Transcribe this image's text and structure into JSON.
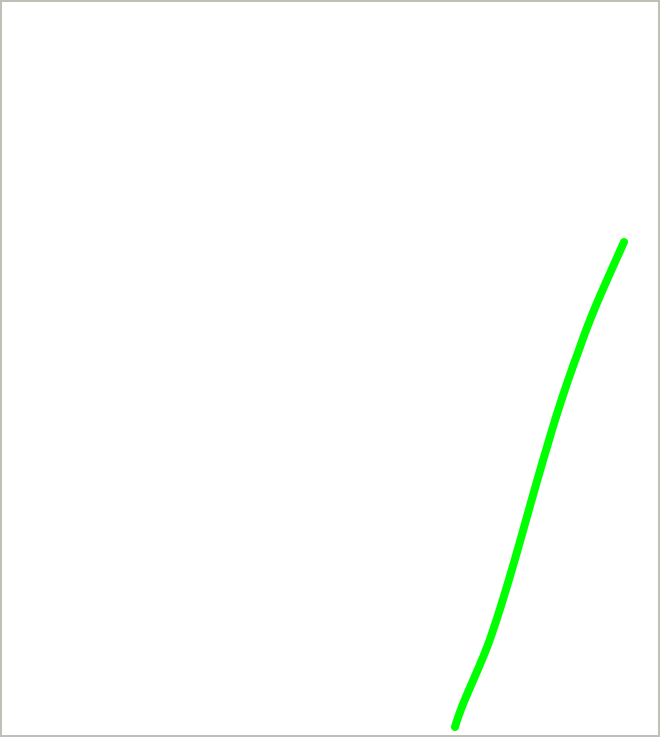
{
  "canvas": {
    "background": "#ffffff",
    "border_color": "#c0c0b8"
  },
  "strokes": [
    {
      "color": "#00ff00"
    }
  ]
}
